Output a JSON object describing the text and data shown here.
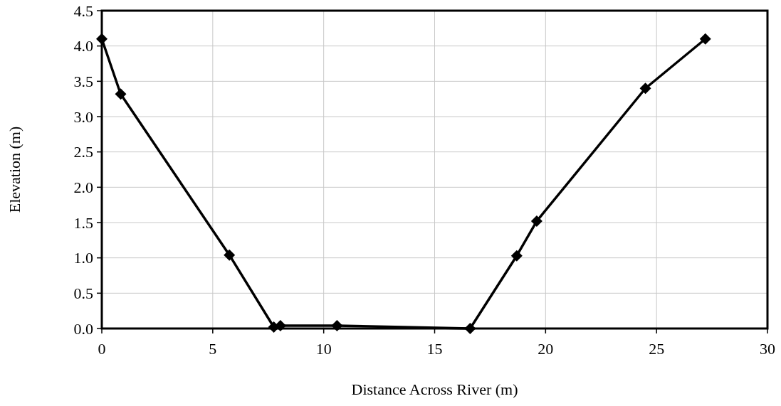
{
  "chart_data": {
    "type": "line",
    "xlabel": "Distance Across River  (m)",
    "ylabel": "Elevation  (m)",
    "x": [
      0,
      0.85,
      5.75,
      7.75,
      8.05,
      10.6,
      16.6,
      18.7,
      19.6,
      24.5,
      27.2
    ],
    "series": [
      {
        "color": "#000000",
        "values": [
          4.1,
          3.32,
          1.04,
          0.02,
          0.04,
          0.04,
          0.0,
          1.03,
          1.52,
          3.4,
          4.1
        ]
      }
    ],
    "xlim": [
      0,
      30
    ],
    "xticks": [
      0,
      5,
      10,
      15,
      20,
      25,
      30
    ],
    "ylim": [
      0,
      4.5
    ],
    "yticks": [
      {
        "value": 0,
        "label": "0.0"
      },
      {
        "value": 0.5,
        "label": "0.5"
      },
      {
        "value": 1,
        "label": "1.0"
      },
      {
        "value": 1.5,
        "label": "1.5"
      },
      {
        "value": 2,
        "label": "2.0"
      },
      {
        "value": 2.5,
        "label": "2.5"
      },
      {
        "value": 3,
        "label": "3.0"
      },
      {
        "value": 3.5,
        "label": "3.5"
      },
      {
        "value": 4,
        "label": "4.0"
      },
      {
        "value": 4.5,
        "label": "4.5"
      }
    ],
    "grid": true,
    "marker": "diamond",
    "line_style": "solid"
  }
}
